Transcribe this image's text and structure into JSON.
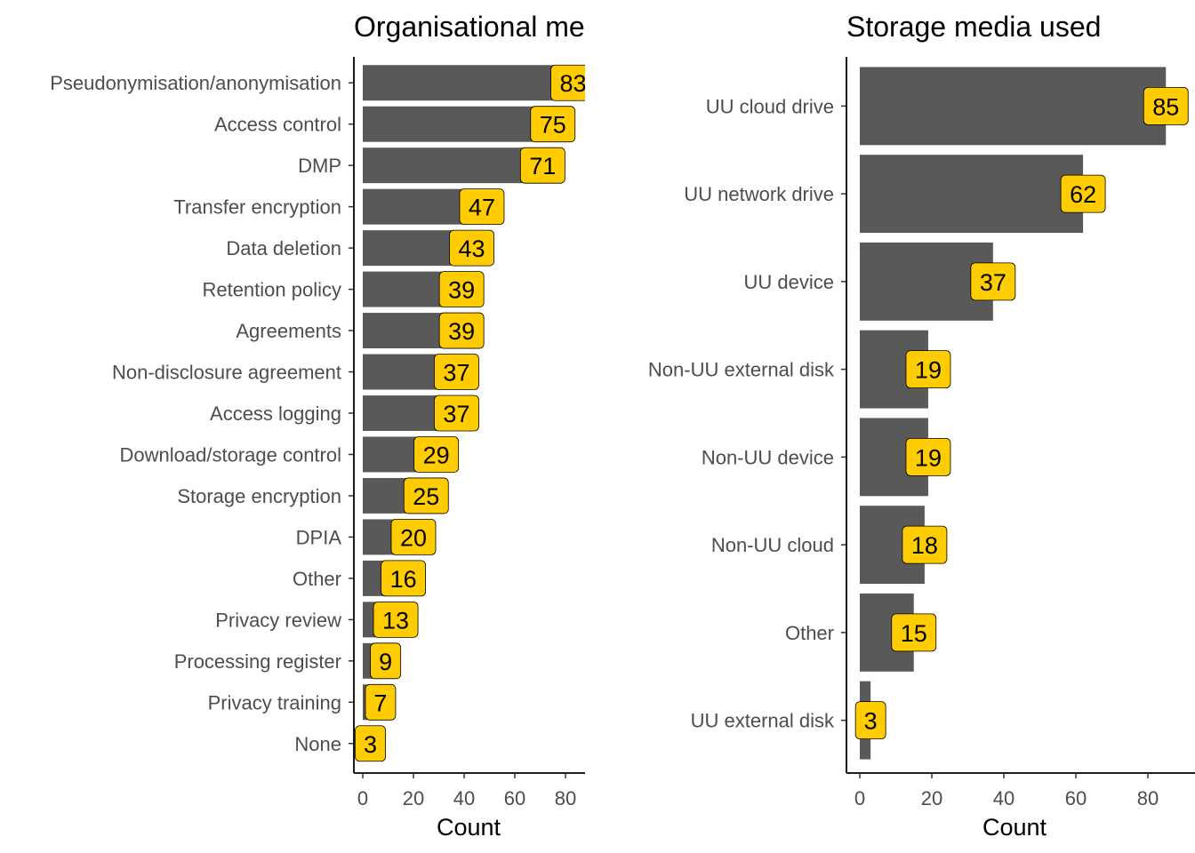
{
  "chart_data": [
    {
      "type": "bar",
      "orientation": "horizontal",
      "title": "Organisational me",
      "xlabel": "Count",
      "ylabel": "",
      "xlim": [
        0,
        87
      ],
      "xticks": [
        0,
        20,
        40,
        60,
        80
      ],
      "grid": false,
      "bar_color": "#595959",
      "label_color": "#ffcc00",
      "categories": [
        "Pseudonymisation/anonymisation",
        "Access control",
        "DMP",
        "Transfer encryption",
        "Data deletion",
        "Retention policy",
        "Agreements",
        "Non-disclosure agreement",
        "Access logging",
        "Download/storage control",
        "Storage encryption",
        "DPIA",
        "Other",
        "Privacy review",
        "Processing register",
        "Privacy training",
        "None"
      ],
      "values": [
        83,
        75,
        71,
        47,
        43,
        39,
        39,
        37,
        37,
        29,
        25,
        20,
        16,
        13,
        9,
        7,
        3
      ]
    },
    {
      "type": "bar",
      "orientation": "horizontal",
      "title": "Storage media used",
      "xlabel": "Count",
      "ylabel": "",
      "xlim": [
        0,
        89
      ],
      "xticks": [
        0,
        20,
        40,
        60,
        80
      ],
      "grid": false,
      "bar_color": "#595959",
      "label_color": "#ffcc00",
      "categories": [
        "UU cloud drive",
        "UU network drive",
        "UU device",
        "Non-UU external disk",
        "Non-UU device",
        "Non-UU cloud",
        "Other",
        "UU external disk"
      ],
      "values": [
        85,
        62,
        37,
        19,
        19,
        18,
        15,
        3
      ]
    }
  ]
}
